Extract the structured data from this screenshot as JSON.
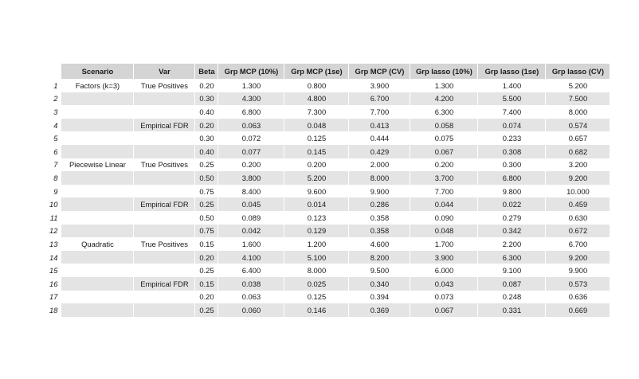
{
  "table": {
    "columns": [
      "Scenario",
      "Var",
      "Beta",
      "Grp MCP (10%)",
      "Grp MCP (1se)",
      "Grp MCP (CV)",
      "Grp lasso (10%)",
      "Grp lasso (1se)",
      "Grp lasso (CV)"
    ],
    "rows": [
      {
        "idx": "1",
        "scenario": "Factors (k=3)",
        "var": "True Positives",
        "beta": "0.20",
        "v": [
          "1.300",
          "0.800",
          "3.900",
          "1.300",
          "1.400",
          "5.200"
        ]
      },
      {
        "idx": "2",
        "scenario": "",
        "var": "",
        "beta": "0.30",
        "v": [
          "4.300",
          "4.800",
          "6.700",
          "4.200",
          "5.500",
          "7.500"
        ]
      },
      {
        "idx": "3",
        "scenario": "",
        "var": "",
        "beta": "0.40",
        "v": [
          "6.800",
          "7.300",
          "7.700",
          "6.300",
          "7.400",
          "8.000"
        ]
      },
      {
        "idx": "4",
        "scenario": "",
        "var": "Empirical FDR",
        "beta": "0.20",
        "v": [
          "0.063",
          "0.048",
          "0.413",
          "0.058",
          "0.074",
          "0.574"
        ]
      },
      {
        "idx": "5",
        "scenario": "",
        "var": "",
        "beta": "0.30",
        "v": [
          "0.072",
          "0.125",
          "0.444",
          "0.075",
          "0.233",
          "0.657"
        ]
      },
      {
        "idx": "6",
        "scenario": "",
        "var": "",
        "beta": "0.40",
        "v": [
          "0.077",
          "0.145",
          "0.429",
          "0.067",
          "0.308",
          "0.682"
        ]
      },
      {
        "idx": "7",
        "scenario": "Piecewise Linear",
        "var": "True Positives",
        "beta": "0.25",
        "v": [
          "0.200",
          "0.200",
          "2.000",
          "0.200",
          "0.300",
          "3.200"
        ]
      },
      {
        "idx": "8",
        "scenario": "",
        "var": "",
        "beta": "0.50",
        "v": [
          "3.800",
          "5.200",
          "8.000",
          "3.700",
          "6.800",
          "9.200"
        ]
      },
      {
        "idx": "9",
        "scenario": "",
        "var": "",
        "beta": "0.75",
        "v": [
          "8.400",
          "9.600",
          "9.900",
          "7.700",
          "9.800",
          "10.000"
        ]
      },
      {
        "idx": "10",
        "scenario": "",
        "var": "Empirical FDR",
        "beta": "0.25",
        "v": [
          "0.045",
          "0.014",
          "0.286",
          "0.044",
          "0.022",
          "0.459"
        ]
      },
      {
        "idx": "11",
        "scenario": "",
        "var": "",
        "beta": "0.50",
        "v": [
          "0.089",
          "0.123",
          "0.358",
          "0.090",
          "0.279",
          "0.630"
        ]
      },
      {
        "idx": "12",
        "scenario": "",
        "var": "",
        "beta": "0.75",
        "v": [
          "0.042",
          "0.129",
          "0.358",
          "0.048",
          "0.342",
          "0.672"
        ]
      },
      {
        "idx": "13",
        "scenario": "Quadratic",
        "var": "True Positives",
        "beta": "0.15",
        "v": [
          "1.600",
          "1.200",
          "4.600",
          "1.700",
          "2.200",
          "6.700"
        ]
      },
      {
        "idx": "14",
        "scenario": "",
        "var": "",
        "beta": "0.20",
        "v": [
          "4.100",
          "5.100",
          "8.200",
          "3.900",
          "6.300",
          "9.200"
        ]
      },
      {
        "idx": "15",
        "scenario": "",
        "var": "",
        "beta": "0.25",
        "v": [
          "6.400",
          "8.000",
          "9.500",
          "6.000",
          "9.100",
          "9.900"
        ]
      },
      {
        "idx": "16",
        "scenario": "",
        "var": "Empirical FDR",
        "beta": "0.15",
        "v": [
          "0.038",
          "0.025",
          "0.340",
          "0.043",
          "0.087",
          "0.573"
        ]
      },
      {
        "idx": "17",
        "scenario": "",
        "var": "",
        "beta": "0.20",
        "v": [
          "0.063",
          "0.125",
          "0.394",
          "0.073",
          "0.248",
          "0.636"
        ]
      },
      {
        "idx": "18",
        "scenario": "",
        "var": "",
        "beta": "0.25",
        "v": [
          "0.060",
          "0.146",
          "0.369",
          "0.067",
          "0.331",
          "0.669"
        ]
      }
    ]
  }
}
